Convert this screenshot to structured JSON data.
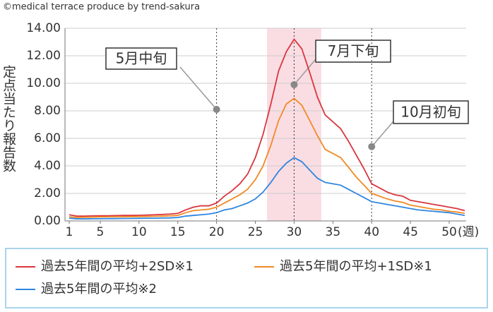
{
  "chart_data": {
    "type": "line",
    "credit": "©medical terrace produce by trend-sakura",
    "y_label": "定点当たり報告数",
    "x_label": "(週)",
    "x": [
      1,
      2,
      3,
      4,
      5,
      6,
      7,
      8,
      9,
      10,
      11,
      12,
      13,
      14,
      15,
      16,
      17,
      18,
      19,
      20,
      21,
      22,
      23,
      24,
      25,
      26,
      27,
      28,
      29,
      30,
      31,
      32,
      33,
      34,
      35,
      36,
      37,
      38,
      39,
      40,
      41,
      42,
      43,
      44,
      45,
      46,
      47,
      48,
      49,
      50,
      51,
      52
    ],
    "xlim": [
      1,
      52
    ],
    "xticks": [
      1,
      5,
      10,
      15,
      20,
      25,
      30,
      35,
      40,
      45,
      50
    ],
    "ylim": [
      0,
      14
    ],
    "yticks": [
      {
        "value": 0,
        "label": "0.00"
      },
      {
        "value": 2,
        "label": "2.00"
      },
      {
        "value": 4,
        "label": "4.00"
      },
      {
        "value": 6,
        "label": "6.00"
      },
      {
        "value": 8,
        "label": "8.00"
      },
      {
        "value": 10,
        "label": "10.00"
      },
      {
        "value": 12,
        "label": "12.00"
      },
      {
        "value": 14,
        "label": "14.00"
      }
    ],
    "grid": true,
    "highlight": [
      26.5,
      33.5
    ],
    "annotations": [
      {
        "text": "5月中旬",
        "x": 20,
        "y": 8.1
      },
      {
        "text": "7月下旬",
        "x": 30,
        "y": 9.9
      },
      {
        "text": "10月初旬",
        "x": 40,
        "y": 5.4
      }
    ],
    "series": [
      {
        "name": "過去5年間の平均+2SD※1",
        "color": "#d9363e",
        "values": [
          0.45,
          0.35,
          0.35,
          0.37,
          0.38,
          0.38,
          0.39,
          0.4,
          0.4,
          0.41,
          0.43,
          0.45,
          0.47,
          0.5,
          0.55,
          0.8,
          1.0,
          1.1,
          1.1,
          1.3,
          1.8,
          2.2,
          2.7,
          3.4,
          4.6,
          6.3,
          8.5,
          10.9,
          12.3,
          13.2,
          12.5,
          10.8,
          9.0,
          7.7,
          7.2,
          6.7,
          5.8,
          4.8,
          3.8,
          2.7,
          2.4,
          2.1,
          1.9,
          1.8,
          1.5,
          1.4,
          1.3,
          1.2,
          1.1,
          1.0,
          0.9,
          0.75
        ]
      },
      {
        "name": "過去5年間の平均+1SD※1",
        "color": "#f08a24",
        "values": [
          0.3,
          0.25,
          0.27,
          0.28,
          0.29,
          0.3,
          0.3,
          0.31,
          0.31,
          0.32,
          0.33,
          0.34,
          0.35,
          0.37,
          0.4,
          0.6,
          0.75,
          0.8,
          0.85,
          1.0,
          1.3,
          1.6,
          1.9,
          2.3,
          3.0,
          4.0,
          5.5,
          7.3,
          8.5,
          8.9,
          8.4,
          7.3,
          6.2,
          5.2,
          4.9,
          4.6,
          3.9,
          3.2,
          2.6,
          2.0,
          1.8,
          1.6,
          1.45,
          1.35,
          1.15,
          1.05,
          0.95,
          0.85,
          0.8,
          0.7,
          0.65,
          0.55
        ]
      },
      {
        "name": "過去5年間の平均※2",
        "color": "#2f86e0",
        "values": [
          0.2,
          0.15,
          0.15,
          0.16,
          0.16,
          0.17,
          0.17,
          0.18,
          0.18,
          0.19,
          0.2,
          0.2,
          0.21,
          0.22,
          0.25,
          0.35,
          0.4,
          0.45,
          0.5,
          0.6,
          0.8,
          0.9,
          1.1,
          1.3,
          1.6,
          2.1,
          2.8,
          3.6,
          4.2,
          4.6,
          4.3,
          3.7,
          3.1,
          2.8,
          2.7,
          2.6,
          2.3,
          2.0,
          1.7,
          1.4,
          1.3,
          1.2,
          1.1,
          1.0,
          0.9,
          0.8,
          0.75,
          0.7,
          0.65,
          0.6,
          0.5,
          0.4
        ]
      }
    ]
  }
}
